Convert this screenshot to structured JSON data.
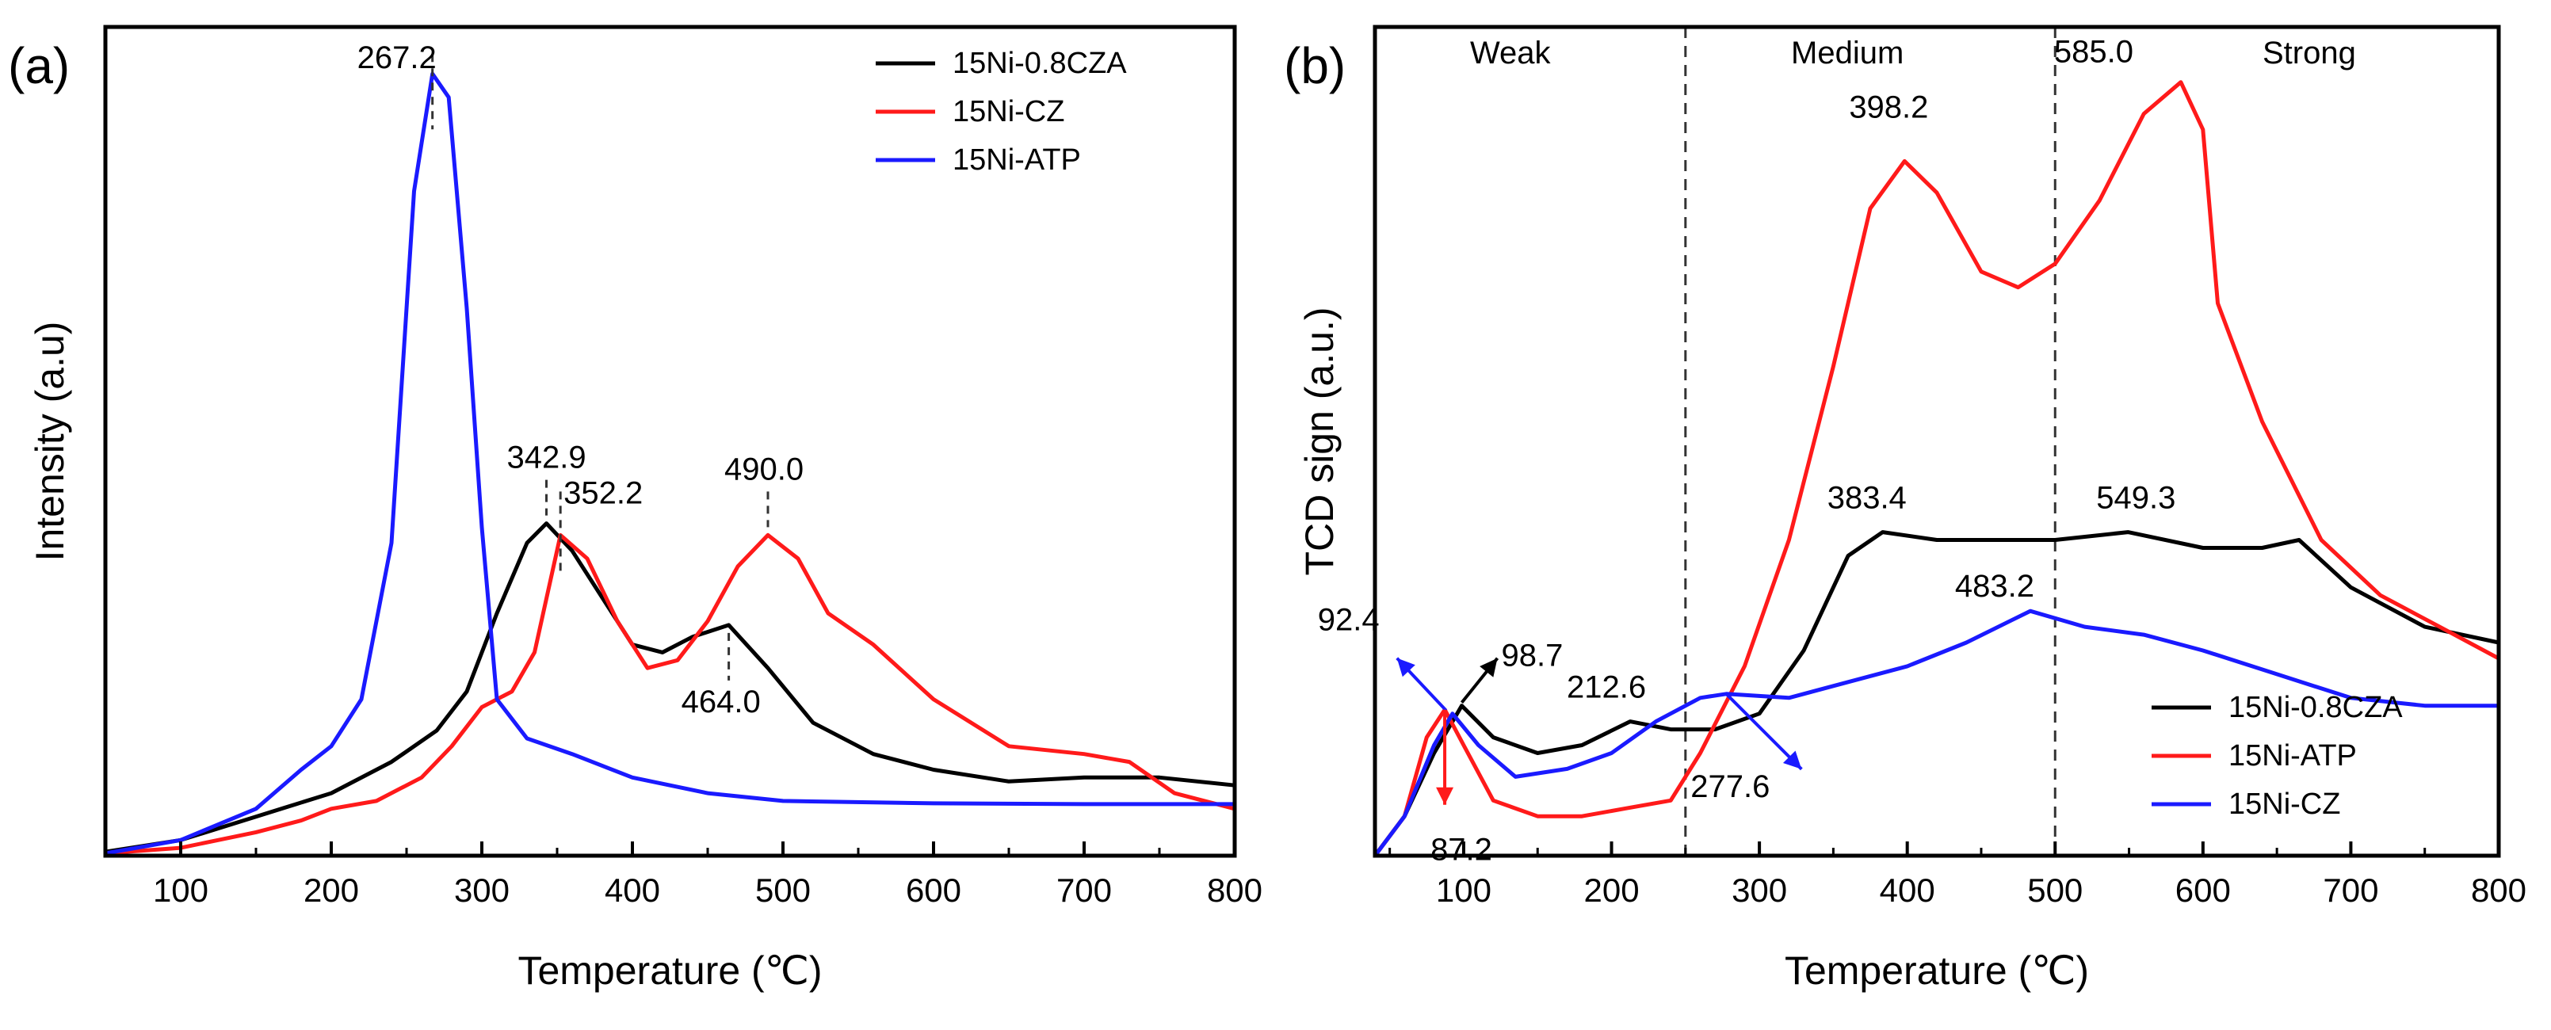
{
  "chart_data": [
    {
      "type": "line",
      "panel_label": "(a)",
      "xlabel": "Temperature (℃)",
      "ylabel": "Intensity (a.u)",
      "xlim": [
        50,
        800
      ],
      "ylim": [
        0,
        1.06
      ],
      "x_ticks": [
        100,
        200,
        300,
        400,
        500,
        600,
        700,
        800
      ],
      "y_ticks_shown": false,
      "legend_position": "top-right",
      "series": [
        {
          "name": "15Ni-0.8CZA",
          "color": "#000000",
          "points": [
            [
              50,
              0.005
            ],
            [
              100,
              0.02
            ],
            [
              150,
              0.05
            ],
            [
              200,
              0.08
            ],
            [
              240,
              0.12
            ],
            [
              270,
              0.16
            ],
            [
              290,
              0.21
            ],
            [
              310,
              0.31
            ],
            [
              330,
              0.4
            ],
            [
              342.9,
              0.425
            ],
            [
              360,
              0.39
            ],
            [
              380,
              0.33
            ],
            [
              400,
              0.27
            ],
            [
              420,
              0.26
            ],
            [
              440,
              0.28
            ],
            [
              464,
              0.295
            ],
            [
              490,
              0.24
            ],
            [
              520,
              0.17
            ],
            [
              560,
              0.13
            ],
            [
              600,
              0.11
            ],
            [
              650,
              0.095
            ],
            [
              700,
              0.1
            ],
            [
              750,
              0.1
            ],
            [
              800,
              0.09
            ]
          ]
        },
        {
          "name": "15Ni-CZ",
          "color": "#ff1a1a",
          "points": [
            [
              50,
              0.003
            ],
            [
              100,
              0.01
            ],
            [
              150,
              0.03
            ],
            [
              180,
              0.045
            ],
            [
              200,
              0.06
            ],
            [
              230,
              0.07
            ],
            [
              260,
              0.1
            ],
            [
              280,
              0.14
            ],
            [
              300,
              0.19
            ],
            [
              320,
              0.21
            ],
            [
              335,
              0.26
            ],
            [
              352.2,
              0.41
            ],
            [
              370,
              0.38
            ],
            [
              390,
              0.3
            ],
            [
              410,
              0.24
            ],
            [
              430,
              0.25
            ],
            [
              450,
              0.3
            ],
            [
              470,
              0.37
            ],
            [
              490,
              0.41
            ],
            [
              510,
              0.38
            ],
            [
              530,
              0.31
            ],
            [
              560,
              0.27
            ],
            [
              600,
              0.2
            ],
            [
              650,
              0.14
            ],
            [
              700,
              0.13
            ],
            [
              730,
              0.12
            ],
            [
              760,
              0.08
            ],
            [
              800,
              0.06
            ]
          ]
        },
        {
          "name": "15Ni-ATP",
          "color": "#1a1aff",
          "points": [
            [
              50,
              0.003
            ],
            [
              100,
              0.02
            ],
            [
              150,
              0.06
            ],
            [
              180,
              0.11
            ],
            [
              200,
              0.14
            ],
            [
              220,
              0.2
            ],
            [
              240,
              0.4
            ],
            [
              255,
              0.85
            ],
            [
              267.2,
              1.0
            ],
            [
              278,
              0.97
            ],
            [
              290,
              0.7
            ],
            [
              300,
              0.42
            ],
            [
              310,
              0.2
            ],
            [
              330,
              0.15
            ],
            [
              360,
              0.13
            ],
            [
              400,
              0.1
            ],
            [
              450,
              0.08
            ],
            [
              500,
              0.07
            ],
            [
              600,
              0.067
            ],
            [
              700,
              0.066
            ],
            [
              800,
              0.066
            ]
          ]
        }
      ],
      "annotations": [
        {
          "text": "267.2",
          "x": 267.2,
          "y": 1.0,
          "dash": true
        },
        {
          "text": "342.9",
          "x": 342.9,
          "y": 0.425,
          "dash": true
        },
        {
          "text": "352.2",
          "x": 352.2,
          "y": 0.41,
          "dash": true
        },
        {
          "text": "490.0",
          "x": 490.0,
          "y": 0.41,
          "dash": true
        },
        {
          "text": "464.0",
          "x": 464.0,
          "y": 0.295,
          "dash": true
        }
      ]
    },
    {
      "type": "line",
      "panel_label": "(b)",
      "xlabel": "Temperature (℃)",
      "ylabel": "TCD sign (a.u.)",
      "xlim": [
        40,
        800
      ],
      "ylim": [
        0,
        1.05
      ],
      "x_ticks": [
        100,
        200,
        300,
        400,
        500,
        600,
        700,
        800
      ],
      "y_ticks_shown": false,
      "legend_position": "bottom-right",
      "regions": [
        {
          "label": "Weak",
          "x_from": 40,
          "x_to": 250
        },
        {
          "label": "Medium",
          "x_from": 250,
          "x_to": 500
        },
        {
          "label": "Strong",
          "x_from": 500,
          "x_to": 800
        }
      ],
      "region_boundaries": [
        250,
        500
      ],
      "series": [
        {
          "name": "15Ni-0.8CZA",
          "color": "#000000",
          "points": [
            [
              40,
              0.0
            ],
            [
              60,
              0.05
            ],
            [
              80,
              0.13
            ],
            [
              98.7,
              0.19
            ],
            [
              120,
              0.15
            ],
            [
              150,
              0.13
            ],
            [
              180,
              0.14
            ],
            [
              212.6,
              0.17
            ],
            [
              240,
              0.16
            ],
            [
              270,
              0.16
            ],
            [
              300,
              0.18
            ],
            [
              330,
              0.26
            ],
            [
              360,
              0.38
            ],
            [
              383.4,
              0.41
            ],
            [
              420,
              0.4
            ],
            [
              460,
              0.4
            ],
            [
              500,
              0.4
            ],
            [
              549.3,
              0.41
            ],
            [
              600,
              0.39
            ],
            [
              640,
              0.39
            ],
            [
              665,
              0.4
            ],
            [
              700,
              0.34
            ],
            [
              750,
              0.29
            ],
            [
              800,
              0.27
            ]
          ]
        },
        {
          "name": "15Ni-ATP",
          "color": "#ff1a1a",
          "points": [
            [
              40,
              0.0
            ],
            [
              60,
              0.05
            ],
            [
              75,
              0.15
            ],
            [
              87.2,
              0.185
            ],
            [
              100,
              0.14
            ],
            [
              120,
              0.07
            ],
            [
              150,
              0.05
            ],
            [
              180,
              0.05
            ],
            [
              210,
              0.06
            ],
            [
              240,
              0.07
            ],
            [
              260,
              0.13
            ],
            [
              290,
              0.24
            ],
            [
              320,
              0.4
            ],
            [
              350,
              0.62
            ],
            [
              375,
              0.82
            ],
            [
              398.2,
              0.88
            ],
            [
              420,
              0.84
            ],
            [
              450,
              0.74
            ],
            [
              475,
              0.72
            ],
            [
              500,
              0.75
            ],
            [
              530,
              0.83
            ],
            [
              560,
              0.94
            ],
            [
              585.0,
              0.98
            ],
            [
              600,
              0.92
            ],
            [
              610,
              0.7
            ],
            [
              640,
              0.55
            ],
            [
              680,
              0.4
            ],
            [
              720,
              0.33
            ],
            [
              760,
              0.29
            ],
            [
              800,
              0.25
            ]
          ]
        },
        {
          "name": "15Ni-CZ",
          "color": "#1a1aff",
          "points": [
            [
              40,
              0.0
            ],
            [
              60,
              0.05
            ],
            [
              80,
              0.14
            ],
            [
              92.4,
              0.18
            ],
            [
              110,
              0.14
            ],
            [
              135,
              0.1
            ],
            [
              170,
              0.11
            ],
            [
              200,
              0.13
            ],
            [
              230,
              0.17
            ],
            [
              260,
              0.2
            ],
            [
              277.6,
              0.205
            ],
            [
              320,
              0.2
            ],
            [
              360,
              0.22
            ],
            [
              400,
              0.24
            ],
            [
              440,
              0.27
            ],
            [
              483.2,
              0.31
            ],
            [
              520,
              0.29
            ],
            [
              560,
              0.28
            ],
            [
              600,
              0.26
            ],
            [
              650,
              0.23
            ],
            [
              700,
              0.2
            ],
            [
              750,
              0.19
            ],
            [
              800,
              0.19
            ]
          ]
        }
      ],
      "annotations": [
        {
          "text": "398.2",
          "x": 398.2,
          "y": 0.88
        },
        {
          "text": "585.0",
          "x": 585.0,
          "y": 0.98
        },
        {
          "text": "383.4",
          "x": 383.4,
          "y": 0.41
        },
        {
          "text": "549.3",
          "x": 549.3,
          "y": 0.41
        },
        {
          "text": "483.2",
          "x": 483.2,
          "y": 0.31
        },
        {
          "text": "212.6",
          "x": 212.6,
          "y": 0.17
        },
        {
          "text": "277.6",
          "x": 277.6,
          "y": 0.205,
          "arrow_color": "#1a1aff"
        },
        {
          "text": "92.4",
          "x": 92.4,
          "y": 0.18,
          "arrow_color": "#1a1aff"
        },
        {
          "text": "98.7",
          "x": 98.7,
          "y": 0.19,
          "arrow_color": "#000000"
        },
        {
          "text": "87.2",
          "x": 87.2,
          "y": 0.185,
          "arrow_color": "#ff1a1a"
        }
      ]
    }
  ]
}
